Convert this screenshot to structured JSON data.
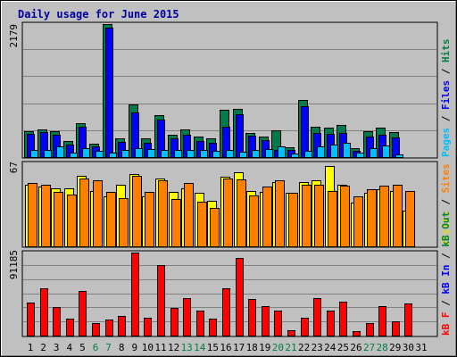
{
  "chart_data": [
    {
      "type": "bar",
      "title": "Daily usage for June 2015",
      "ymax_label": "2179",
      "ylim": [
        0,
        2179
      ],
      "grid": true,
      "categories": [
        "1",
        "2",
        "3",
        "4",
        "5",
        "6",
        "7",
        "8",
        "9",
        "10",
        "11",
        "12",
        "13",
        "14",
        "15",
        "16",
        "17",
        "18",
        "19",
        "20",
        "21",
        "22",
        "23",
        "24",
        "25",
        "26",
        "27",
        "28",
        "29",
        "30",
        "31"
      ],
      "weekend_days": [
        "6",
        "7",
        "13",
        "14",
        "20",
        "21",
        "27",
        "28"
      ],
      "side_labels": [
        {
          "text": "Pages",
          "color": "#00c0ff"
        },
        {
          "text": " / ",
          "color": "#000000"
        },
        {
          "text": "Files",
          "color": "#0000ff"
        },
        {
          "text": " / ",
          "color": "#000000"
        },
        {
          "text": "Hits",
          "color": "#008040"
        }
      ],
      "series": [
        {
          "name": "Hits",
          "color": "#007a4a",
          "values": [
            430,
            450,
            430,
            270,
            560,
            220,
            2179,
            310,
            870,
            300,
            690,
            360,
            460,
            330,
            300,
            770,
            790,
            390,
            330,
            440,
            160,
            940,
            490,
            480,
            520,
            140,
            430,
            480,
            410,
            0,
            0
          ]
        },
        {
          "name": "Files",
          "color": "#0000ff",
          "values": [
            380,
            410,
            370,
            200,
            490,
            180,
            2120,
            250,
            730,
            240,
            620,
            300,
            370,
            270,
            230,
            490,
            700,
            350,
            280,
            120,
            110,
            840,
            400,
            380,
            390,
            100,
            330,
            360,
            320,
            0,
            0
          ]
        },
        {
          "name": "Pages",
          "color": "#00c0ff",
          "values": [
            120,
            120,
            170,
            80,
            150,
            100,
            80,
            120,
            150,
            130,
            110,
            120,
            120,
            110,
            100,
            110,
            90,
            120,
            130,
            180,
            60,
            100,
            170,
            200,
            230,
            70,
            150,
            190,
            50,
            0,
            0
          ]
        }
      ]
    },
    {
      "type": "bar",
      "ymax_label": "67",
      "ylim": [
        0,
        67
      ],
      "side_labels": [
        {
          "text": "Visits",
          "color": "#e0e000"
        },
        {
          "text": " / ",
          "color": "#000000"
        },
        {
          "text": "Sites",
          "color": "#ff8000"
        }
      ],
      "series": [
        {
          "name": "Visits",
          "color": "#ffff00",
          "values": [
            50,
            48,
            47,
            47,
            57,
            45,
            40,
            50,
            58,
            40,
            55,
            44,
            47,
            43,
            37,
            56,
            60,
            45,
            44,
            52,
            43,
            52,
            53,
            65,
            50,
            35,
            43,
            46,
            45,
            29,
            0
          ]
        },
        {
          "name": "Sites",
          "color": "#ff8000",
          "values": [
            51,
            50,
            44,
            42,
            55,
            53,
            44,
            39,
            57,
            44,
            53,
            38,
            51,
            36,
            31,
            55,
            54,
            41,
            48,
            53,
            43,
            50,
            50,
            45,
            49,
            40,
            46,
            49,
            50,
            45,
            0
          ]
        }
      ]
    },
    {
      "type": "bar",
      "ymax_label": "91185",
      "ylim": [
        0,
        91185
      ],
      "side_labels": [
        {
          "text": "kB F",
          "color": "#ff0000"
        },
        {
          "text": " / ",
          "color": "#000000"
        },
        {
          "text": "kB In",
          "color": "#0000ff"
        },
        {
          "text": " / ",
          "color": "#000000"
        },
        {
          "text": "kB Out",
          "color": "#008040"
        }
      ],
      "series": [
        {
          "name": "kB F",
          "color": "#ff0000",
          "values": [
            36000,
            52000,
            31000,
            19000,
            49000,
            14000,
            18000,
            22000,
            91185,
            20000,
            77000,
            30000,
            41000,
            27000,
            19000,
            52000,
            85000,
            40000,
            32000,
            27000,
            6000,
            20000,
            41000,
            27000,
            37000,
            5000,
            14000,
            32000,
            16000,
            35000,
            0
          ]
        }
      ]
    }
  ]
}
